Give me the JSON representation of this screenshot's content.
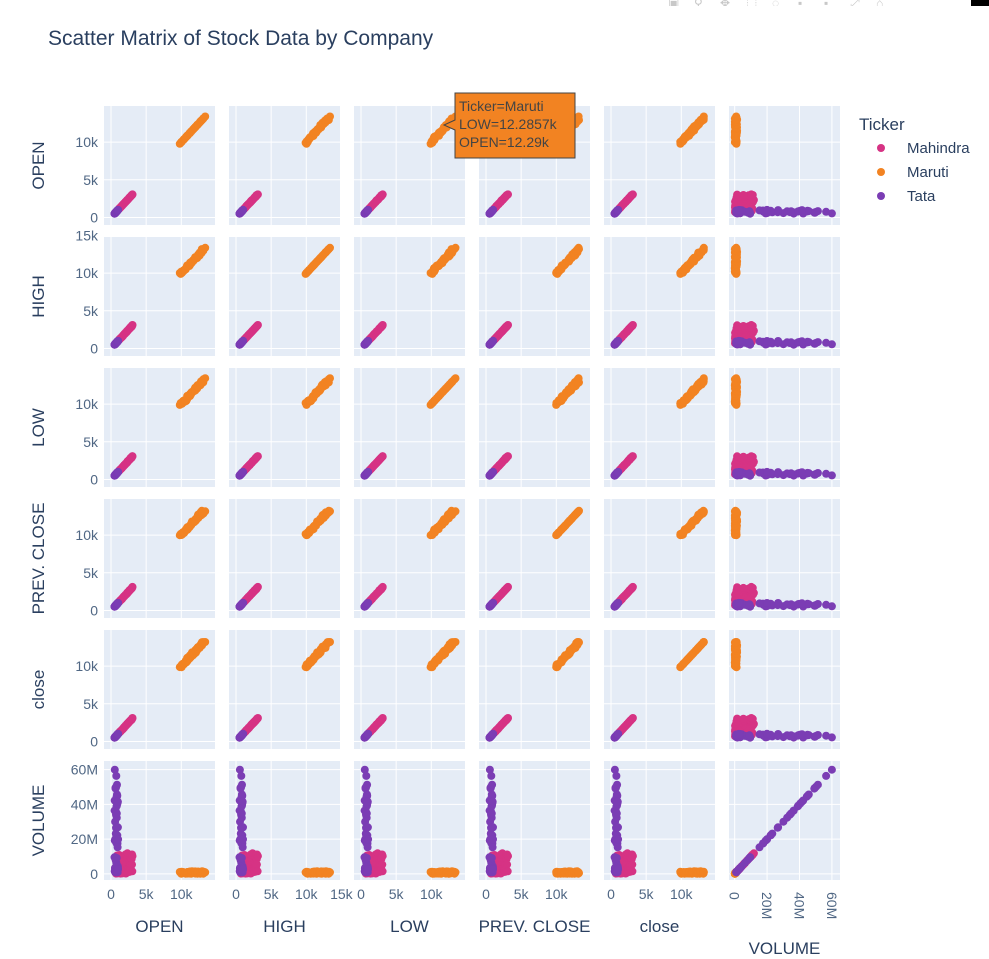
{
  "chart_data": {
    "type": "scatter",
    "title": "Scatter Matrix of Stock Data by Company",
    "dimensions": [
      {
        "label": "OPEN",
        "yticks": [
          {
            "v": 0,
            "t": "0"
          },
          {
            "v": 5000,
            "t": "5k"
          },
          {
            "v": 10000,
            "t": "10k"
          }
        ],
        "xticks": [
          {
            "v": 0,
            "t": "0"
          },
          {
            "v": 5000,
            "t": "5k"
          },
          {
            "v": 10000,
            "t": "10k"
          }
        ]
      },
      {
        "label": "HIGH",
        "yticks": [
          {
            "v": 0,
            "t": "0"
          },
          {
            "v": 5000,
            "t": "5k"
          },
          {
            "v": 10000,
            "t": "10k"
          },
          {
            "v": 15000,
            "t": "15k"
          }
        ],
        "xticks": [
          {
            "v": 0,
            "t": "0"
          },
          {
            "v": 5000,
            "t": "5k"
          },
          {
            "v": 10000,
            "t": "10k"
          },
          {
            "v": 15000,
            "t": "15k"
          }
        ]
      },
      {
        "label": "LOW",
        "yticks": [
          {
            "v": 0,
            "t": "0"
          },
          {
            "v": 5000,
            "t": "5k"
          },
          {
            "v": 10000,
            "t": "10k"
          }
        ],
        "xticks": [
          {
            "v": 0,
            "t": "0"
          },
          {
            "v": 5000,
            "t": "5k"
          },
          {
            "v": 10000,
            "t": "10k"
          }
        ]
      },
      {
        "label": "PREV. CLOSE",
        "yticks": [
          {
            "v": 0,
            "t": "0"
          },
          {
            "v": 5000,
            "t": "5k"
          },
          {
            "v": 10000,
            "t": "10k"
          }
        ],
        "xticks": [
          {
            "v": 0,
            "t": "0"
          },
          {
            "v": 5000,
            "t": "5k"
          },
          {
            "v": 10000,
            "t": "10k"
          }
        ]
      },
      {
        "label": "close",
        "yticks": [
          {
            "v": 0,
            "t": "0"
          },
          {
            "v": 5000,
            "t": "5k"
          },
          {
            "v": 10000,
            "t": "10k"
          }
        ],
        "xticks": [
          {
            "v": 0,
            "t": "0"
          },
          {
            "v": 5000,
            "t": "5k"
          },
          {
            "v": 10000,
            "t": "10k"
          }
        ]
      },
      {
        "label": "VOLUME",
        "yticks": [
          {
            "v": 0,
            "t": "0"
          },
          {
            "v": 20000000,
            "t": "20M"
          },
          {
            "v": 40000000,
            "t": "40M"
          },
          {
            "v": 60000000,
            "t": "60M"
          }
        ],
        "xticks": [
          {
            "v": 0,
            "t": "0"
          },
          {
            "v": 20000000,
            "t": "20M"
          },
          {
            "v": 40000000,
            "t": "40M"
          },
          {
            "v": 60000000,
            "t": "60M"
          }
        ]
      }
    ],
    "price_axis_range": [
      -1000,
      14800
    ],
    "volume_axis_range": [
      -3500000,
      65000000
    ],
    "legend": {
      "title": "Ticker",
      "position": "top-right"
    },
    "series": [
      {
        "name": "Mahindra",
        "color": "#d63384",
        "price_range": [
          700,
          3100
        ],
        "volume_range": [
          200000,
          12000000
        ]
      },
      {
        "name": "Maruti",
        "color": "#f28322",
        "price_range": [
          9900,
          13300
        ],
        "volume_range": [
          100000,
          1500000
        ]
      },
      {
        "name": "Tata",
        "color": "#7b3db4",
        "price_range": [
          500,
          1000
        ],
        "volume_range": [
          1000000,
          60000000
        ]
      }
    ],
    "grid": true,
    "hover_label": {
      "lines": [
        "Ticker=Maruti",
        "LOW=12.2857k",
        "OPEN=12.29k"
      ],
      "color": "#f28322"
    }
  },
  "toolbar": {
    "icons": [
      "camera-icon",
      "zoom-icon",
      "pan-icon",
      "box-select-icon",
      "lasso-icon",
      "zoom-in-icon",
      "zoom-out-icon",
      "autoscale-icon",
      "reset-icon"
    ]
  }
}
